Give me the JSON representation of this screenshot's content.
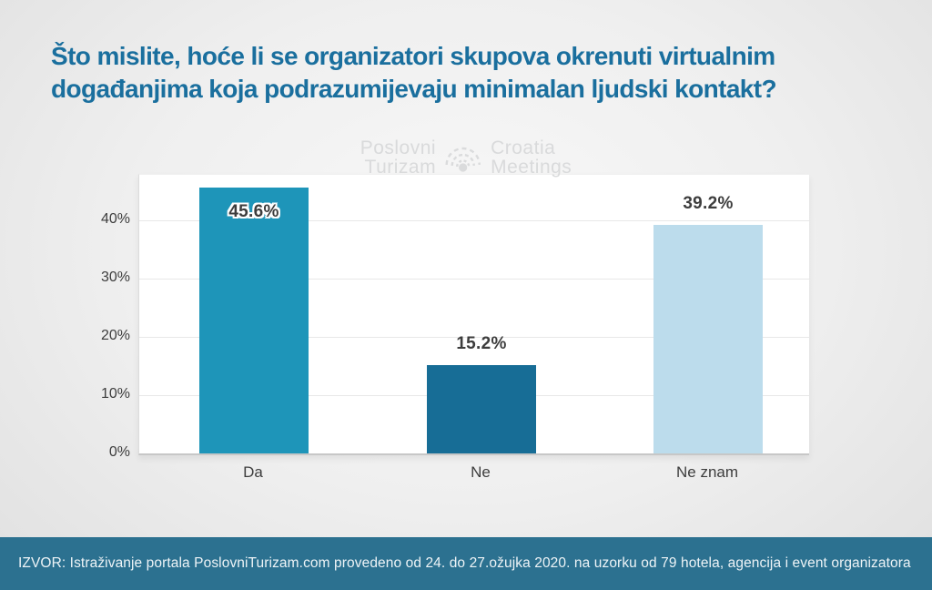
{
  "title": {
    "line1": "Što mislite, hoće li se organizatori skupova okrenuti virtualnim",
    "line2": "događanjima koja podrazumijevaju minimalan ljudski kontakt?"
  },
  "watermark": {
    "left_top": "Poslovni",
    "left_bottom": "Turizam",
    "right_top": "Croatia",
    "right_bottom": "Meetings",
    "icon": "radar-signal-icon"
  },
  "chart_data": {
    "type": "bar",
    "categories": [
      "Da",
      "Ne",
      "Ne znam"
    ],
    "values": [
      45.6,
      15.2,
      39.2
    ],
    "value_labels": [
      "45.6%",
      "15.2%",
      "39.2%"
    ],
    "bar_colors": [
      "#1e95b9",
      "#176d96",
      "#bcdcec"
    ],
    "yticks": [
      "0%",
      "10%",
      "20%",
      "30%",
      "40%"
    ],
    "ylim": [
      0,
      47.8
    ],
    "grid": true,
    "legend": "none",
    "title": "",
    "xlabel": "",
    "ylabel": ""
  },
  "footer": {
    "source_text": "IZVOR: Istraživanje portala PoslovniTurizam.com provedeno od 24. do 27.ožujka 2020. na uzorku od 79 hotela, agencija i event organizatora"
  },
  "colors": {
    "title_text": "#1a6f9e",
    "footer_background": "#2c7190",
    "label_text": "#3d3d3d",
    "page_background_center": "#f8f8f8",
    "page_background_edge": "#e0e0e0",
    "watermark_text": "#d9dadb"
  }
}
